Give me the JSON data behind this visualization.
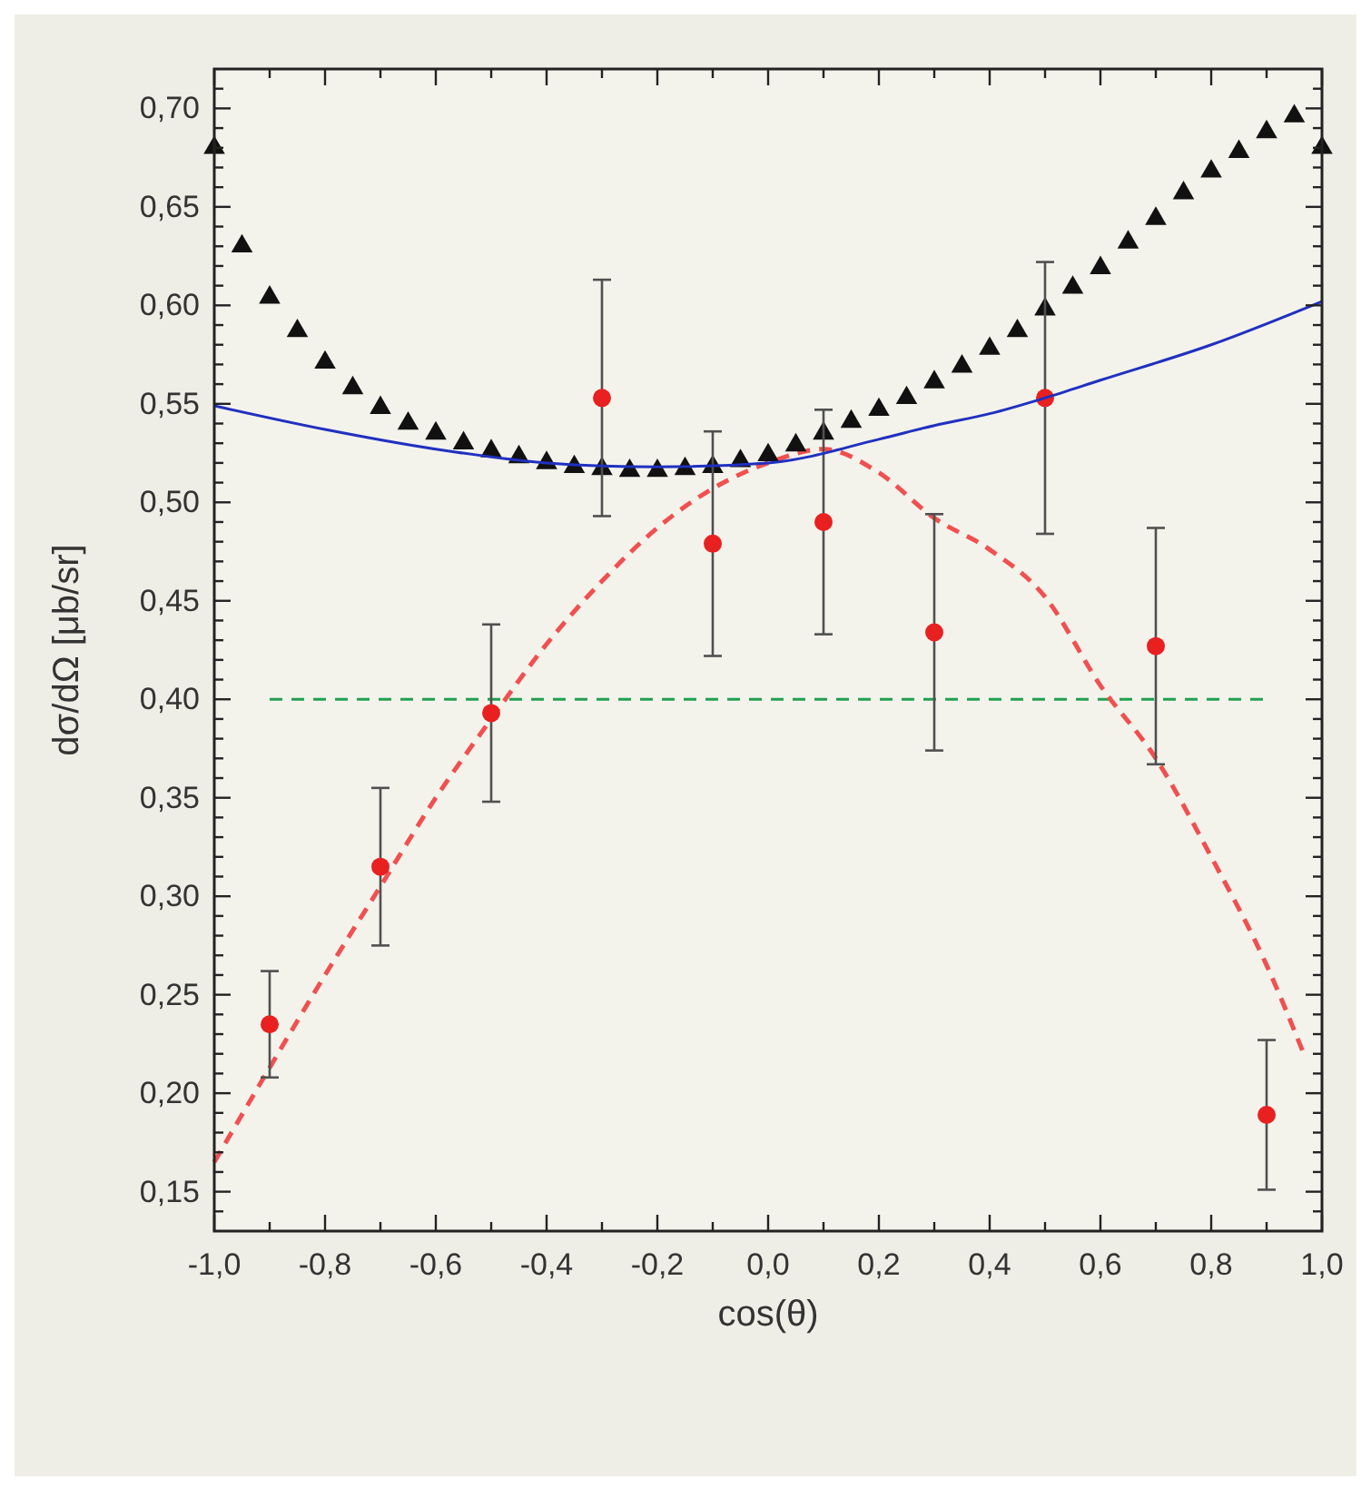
{
  "chart_data": {
    "type": "scatter",
    "xlabel": "cos(θ)",
    "ylabel": "dσ/dΩ [μb/sr]",
    "xlim": [
      -1,
      1
    ],
    "ylim": [
      0.13,
      0.72
    ],
    "grid": false,
    "xticks": [
      {
        "value": -1,
        "label": "-1,0"
      },
      {
        "value": -0.9,
        "label": null
      },
      {
        "value": -0.8,
        "label": "-0,8"
      },
      {
        "value": -0.7,
        "label": null
      },
      {
        "value": -0.6,
        "label": "-0,6"
      },
      {
        "value": -0.5,
        "label": null
      },
      {
        "value": -0.4,
        "label": "-0,4"
      },
      {
        "value": -0.3,
        "label": null
      },
      {
        "value": -0.2,
        "label": "-0,2"
      },
      {
        "value": -0.1,
        "label": null
      },
      {
        "value": 0,
        "label": "0,0"
      },
      {
        "value": 0.1,
        "label": null
      },
      {
        "value": 0.2,
        "label": "0,2"
      },
      {
        "value": 0.3,
        "label": null
      },
      {
        "value": 0.4,
        "label": "0,4"
      },
      {
        "value": 0.5,
        "label": null
      },
      {
        "value": 0.6,
        "label": "0,6"
      },
      {
        "value": 0.7,
        "label": null
      },
      {
        "value": 0.8,
        "label": "0,8"
      },
      {
        "value": 0.9,
        "label": null
      },
      {
        "value": 1,
        "label": "1,0"
      }
    ],
    "yticks": [
      {
        "value": 0.15,
        "label": "0,15"
      },
      {
        "value": 0.2,
        "label": "0,20"
      },
      {
        "value": 0.25,
        "label": "0,25"
      },
      {
        "value": 0.3,
        "label": "0,30"
      },
      {
        "value": 0.35,
        "label": "0,35"
      },
      {
        "value": 0.4,
        "label": "0,40"
      },
      {
        "value": 0.45,
        "label": "0,45"
      },
      {
        "value": 0.5,
        "label": "0,50"
      },
      {
        "value": 0.55,
        "label": "0,55"
      },
      {
        "value": 0.6,
        "label": "0,60"
      },
      {
        "value": 0.65,
        "label": "0,65"
      },
      {
        "value": 0.7,
        "label": "0,70"
      },
      {
        "value": 0.14,
        "label": null
      },
      {
        "value": 0.16,
        "label": null
      },
      {
        "value": 0.17,
        "label": null
      },
      {
        "value": 0.18,
        "label": null
      },
      {
        "value": 0.19,
        "label": null
      },
      {
        "value": 0.21,
        "label": null
      },
      {
        "value": 0.22,
        "label": null
      },
      {
        "value": 0.23,
        "label": null
      },
      {
        "value": 0.24,
        "label": null
      },
      {
        "value": 0.26,
        "label": null
      },
      {
        "value": 0.27,
        "label": null
      },
      {
        "value": 0.28,
        "label": null
      },
      {
        "value": 0.29,
        "label": null
      },
      {
        "value": 0.31,
        "label": null
      },
      {
        "value": 0.32,
        "label": null
      },
      {
        "value": 0.33,
        "label": null
      },
      {
        "value": 0.34,
        "label": null
      },
      {
        "value": 0.36,
        "label": null
      },
      {
        "value": 0.37,
        "label": null
      },
      {
        "value": 0.38,
        "label": null
      },
      {
        "value": 0.39,
        "label": null
      },
      {
        "value": 0.41,
        "label": null
      },
      {
        "value": 0.42,
        "label": null
      },
      {
        "value": 0.43,
        "label": null
      },
      {
        "value": 0.44,
        "label": null
      },
      {
        "value": 0.46,
        "label": null
      },
      {
        "value": 0.47,
        "label": null
      },
      {
        "value": 0.48,
        "label": null
      },
      {
        "value": 0.49,
        "label": null
      },
      {
        "value": 0.51,
        "label": null
      },
      {
        "value": 0.52,
        "label": null
      },
      {
        "value": 0.53,
        "label": null
      },
      {
        "value": 0.54,
        "label": null
      },
      {
        "value": 0.56,
        "label": null
      },
      {
        "value": 0.57,
        "label": null
      },
      {
        "value": 0.58,
        "label": null
      },
      {
        "value": 0.59,
        "label": null
      },
      {
        "value": 0.61,
        "label": null
      },
      {
        "value": 0.62,
        "label": null
      },
      {
        "value": 0.63,
        "label": null
      },
      {
        "value": 0.64,
        "label": null
      },
      {
        "value": 0.66,
        "label": null
      },
      {
        "value": 0.67,
        "label": null
      },
      {
        "value": 0.68,
        "label": null
      },
      {
        "value": 0.69,
        "label": null
      },
      {
        "value": 0.71,
        "label": null
      }
    ],
    "series": [
      {
        "type": "line",
        "color": "#20a050",
        "line_style": "dashed",
        "marker": "none",
        "x": [
          -0.9,
          0.9
        ],
        "values": [
          0.4,
          0.4
        ]
      },
      {
        "type": "line",
        "color": "#2030c0",
        "line_style": "solid",
        "marker": "none",
        "x": [
          -1,
          -0.8,
          -0.6,
          -0.4,
          -0.2,
          0,
          0.2,
          0.3,
          0.4,
          0.5,
          0.6,
          0.8,
          1
        ],
        "values": [
          0.549,
          0.537,
          0.527,
          0.52,
          0.518,
          0.52,
          0.532,
          0.539,
          0.545,
          0.553,
          0.562,
          0.58,
          0.602
        ]
      },
      {
        "type": "line",
        "color": "#f05050",
        "line_style": "dashed",
        "marker": "none",
        "x": [
          -1,
          -0.9,
          -0.8,
          -0.7,
          -0.6,
          -0.5,
          -0.4,
          -0.3,
          -0.2,
          -0.1,
          0,
          0.1,
          0.2,
          0.3,
          0.4,
          0.5,
          0.6,
          0.7,
          0.8,
          0.9,
          0.97
        ],
        "values": [
          0.165,
          0.213,
          0.26,
          0.305,
          0.35,
          0.39,
          0.428,
          0.46,
          0.487,
          0.507,
          0.52,
          0.527,
          0.515,
          0.492,
          0.476,
          0.452,
          0.407,
          0.37,
          0.32,
          0.265,
          0.218
        ]
      },
      {
        "color": "#111111",
        "marker": "triangle",
        "x": [
          -1,
          -0.95,
          -0.9,
          -0.85,
          -0.8,
          -0.75,
          -0.7,
          -0.65,
          -0.6,
          -0.55,
          -0.5,
          -0.45,
          -0.4,
          -0.35,
          -0.3,
          -0.25,
          -0.2,
          -0.15,
          -0.1,
          -0.05,
          0,
          0.05,
          0.1,
          0.15,
          0.2,
          0.25,
          0.3,
          0.35,
          0.4,
          0.45,
          0.5,
          0.55,
          0.6,
          0.65,
          0.7,
          0.75,
          0.8,
          0.85,
          0.9,
          0.95,
          1
        ],
        "values": [
          0.68,
          0.63,
          0.604,
          0.587,
          0.571,
          0.558,
          0.548,
          0.54,
          0.535,
          0.53,
          0.526,
          0.523,
          0.52,
          0.518,
          0.517,
          0.516,
          0.516,
          0.517,
          0.518,
          0.521,
          0.524,
          0.529,
          0.535,
          0.541,
          0.547,
          0.553,
          0.561,
          0.569,
          0.578,
          0.587,
          0.598,
          0.609,
          0.619,
          0.632,
          0.644,
          0.657,
          0.668,
          0.678,
          0.688,
          0.696,
          0.68
        ]
      },
      {
        "color": "#e82020",
        "marker": "circle",
        "x": [
          -0.9,
          -0.7,
          -0.5,
          -0.3,
          -0.1,
          0.1,
          0.3,
          0.5,
          0.7,
          0.9
        ],
        "values": [
          0.235,
          0.315,
          0.393,
          0.553,
          0.479,
          0.49,
          0.434,
          0.553,
          0.427,
          0.189
        ],
        "errors": [
          0.027,
          0.04,
          0.045,
          0.06,
          0.057,
          0.057,
          0.06,
          0.069,
          0.06,
          0.038
        ]
      }
    ]
  }
}
